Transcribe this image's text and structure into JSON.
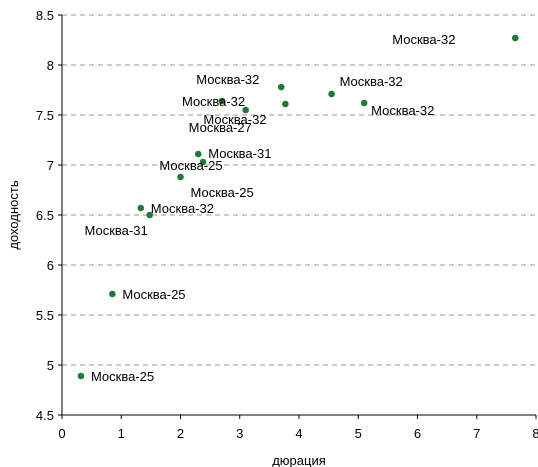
{
  "chart_data": {
    "type": "scatter",
    "title": "",
    "xlabel": "дюрация",
    "ylabel": "доходность",
    "xlim": [
      0,
      8
    ],
    "ylim": [
      4.5,
      8.5
    ],
    "xticks": [
      0,
      1,
      2,
      3,
      4,
      5,
      6,
      7,
      8
    ],
    "yticks": [
      4.5,
      5,
      5.5,
      6,
      6.5,
      7,
      7.5,
      8,
      8.5
    ],
    "grid": "horizontal dashed",
    "point_color": "#1f7a3a",
    "points": [
      {
        "x": 0.32,
        "y": 4.89,
        "label": "Москва-25"
      },
      {
        "x": 0.85,
        "y": 5.71,
        "label": "Москва-25"
      },
      {
        "x": 1.33,
        "y": 6.57,
        "label": "Москва-32"
      },
      {
        "x": 1.48,
        "y": 6.5,
        "label": "Москва-31"
      },
      {
        "x": 2.0,
        "y": 6.88,
        "label": "Москва-25"
      },
      {
        "x": 2.3,
        "y": 7.11,
        "label": "Москва-31"
      },
      {
        "x": 2.38,
        "y": 7.03,
        "label": "Москва-25"
      },
      {
        "x": 2.7,
        "y": 7.64,
        "label": "Москва-32"
      },
      {
        "x": 3.1,
        "y": 7.55,
        "label": "Москва-27"
      },
      {
        "x": 3.7,
        "y": 7.78,
        "label": "Москва-32"
      },
      {
        "x": 3.77,
        "y": 7.61,
        "label": "Москва-32"
      },
      {
        "x": 4.55,
        "y": 7.71,
        "label": "Москва-32"
      },
      {
        "x": 5.1,
        "y": 7.62,
        "label": "Москва-32"
      },
      {
        "x": 7.65,
        "y": 8.27,
        "label": "Москва-32"
      }
    ]
  }
}
